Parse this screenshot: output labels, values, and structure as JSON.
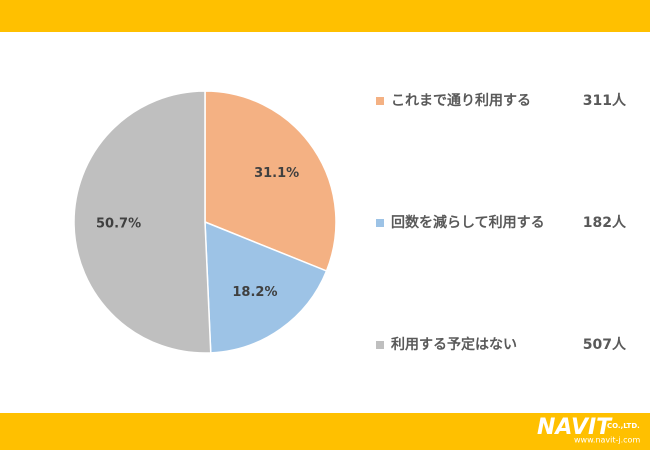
{
  "chart_data": {
    "type": "pie",
    "categories": [
      "これまで通り利用する",
      "回数を減らして利用する",
      "利用する予定はない"
    ],
    "values": [
      31.1,
      18.2,
      50.7
    ],
    "value_labels": [
      "31.1%",
      "18.2%",
      "50.7%"
    ],
    "legend_values": [
      "311人",
      "182人",
      "507人"
    ],
    "colors": [
      "#f4b183",
      "#9dc3e6",
      "#bfbfbf"
    ],
    "legend": "right"
  },
  "footer": {
    "logo": "NAVIT",
    "company": "CO.,LTD.",
    "url": "www.navit-j.com"
  }
}
